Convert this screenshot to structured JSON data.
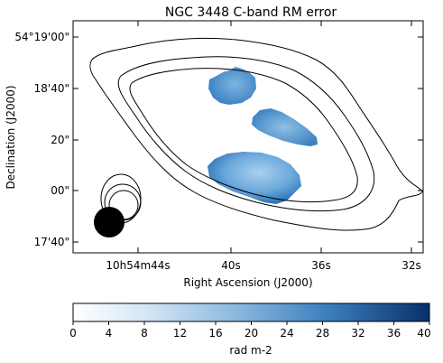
{
  "chart_data": {
    "type": "heatmap",
    "title": "NGC 3448    C-band    RM error",
    "xlabel": "Right Ascension (J2000)",
    "ylabel": "Declination (J2000)",
    "x_ticks": [
      "10h54m44s",
      "40s",
      "36s",
      "32s"
    ],
    "y_ticks": [
      "54°19'00\"",
      "18'40\"",
      "20\"",
      "00\"",
      "17'40\""
    ],
    "colorbar": {
      "label": "rad m-2",
      "range": [
        0,
        40
      ],
      "ticks": [
        "0",
        "4",
        "8",
        "12",
        "16",
        "20",
        "24",
        "28",
        "32",
        "36",
        "40"
      ],
      "colormap": "white-to-dark-blue"
    },
    "regions": [
      {
        "name": "north",
        "approx_rm_error": 20
      },
      {
        "name": "middle",
        "approx_rm_error": 18
      },
      {
        "name": "south",
        "approx_rm_error": 14
      }
    ],
    "beam": "filled black ellipse, lower-left",
    "colors": {
      "low": "#ffffff",
      "mid": "#5b9bd5",
      "high": "#08306b"
    }
  }
}
